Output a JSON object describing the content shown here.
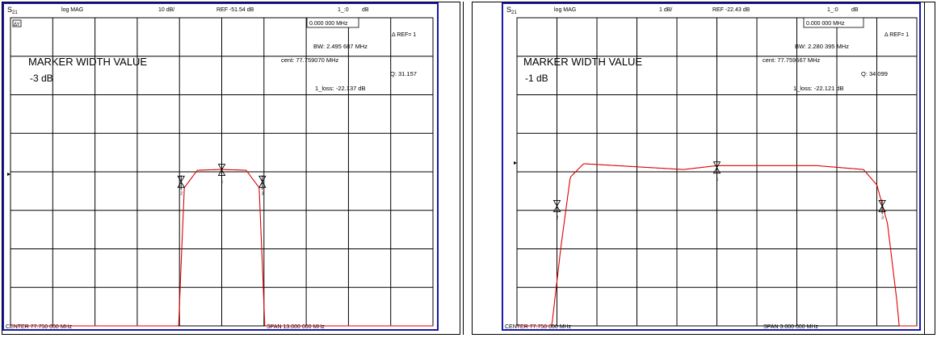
{
  "colors": {
    "trace": "#e00000",
    "grid": "#000000",
    "border": "#1a1aa6",
    "marker": "#000000"
  },
  "chart_data": [
    {
      "type": "line",
      "header": {
        "param_prefix": "S",
        "param_sub": "21",
        "format": "log MAG",
        "scale": "10 dB/",
        "ref": "REF -51.54 dB",
        "marker_header": "1_:0",
        "marker_header_unit": "dB"
      },
      "footer": {
        "center": "CENTER  77.750 000 MHz",
        "span": "SPAN  13.000 000 MHz"
      },
      "corner_badge": "ΔΥ",
      "readouts": {
        "marker_freq": "0.000 000 MHz",
        "delta_ref": "Δ REF= 1",
        "bw": "BW:   2.495 687 MHz",
        "cent": "cent: 77.759070 MHz",
        "q": "Q: 31.157",
        "loss": "1_loss: -22.137 dB"
      },
      "overlay": {
        "title": "MARKER WIDTH VALUE",
        "value": "-3 dB"
      },
      "axes": {
        "x_center_mhz": 77.75,
        "x_span_mhz": 13.0,
        "y_ref_db": -51.54,
        "y_per_div_db": 10,
        "grid_divisions": [
          10,
          8
        ]
      },
      "series": [
        {
          "x_mhz": [
            71.25,
            73.5,
            76.3,
            76.5,
            76.6,
            77.0,
            77.75,
            78.5,
            78.9,
            79.0,
            79.2,
            82.0,
            84.25
          ],
          "y_db": [
            -125.0,
            -118.0,
            -117.0,
            -75.0,
            -55.0,
            -50.5,
            -50.3,
            -50.5,
            -55.0,
            -75.0,
            -117.0,
            -117.0,
            -118.0
          ]
        }
      ],
      "markers": [
        {
          "label": "1",
          "x_mhz": 77.75,
          "y_db": -50.4
        },
        {
          "label": "2",
          "x_mhz": 76.5,
          "y_db": -53.5
        },
        {
          "label": "3",
          "x_mhz": 79.0,
          "y_db": -53.5
        }
      ]
    },
    {
      "type": "line",
      "header": {
        "param_prefix": "S",
        "param_sub": "21",
        "format": "log MAG",
        "scale": "1 dB/",
        "ref": "REF -22.43 dB",
        "marker_header": "1_:0",
        "marker_header_unit": "dB"
      },
      "footer": {
        "center": "CENTER  77.750 000 MHz",
        "span": "SPAN  3.000 000 MHz"
      },
      "readouts": {
        "marker_freq": "0.000 000 MHz",
        "delta_ref": "Δ REF= 1",
        "bw": "BW:   2.280 395 MHz",
        "cent": "cent: 77.759667 MHz",
        "q": "Q: 34.099",
        "loss": "1_loss: -22.121 dB"
      },
      "overlay": {
        "title": "MARKER WIDTH VALUE",
        "value": "-1 dB"
      },
      "axes": {
        "x_center_mhz": 77.75,
        "x_span_mhz": 3.0,
        "y_ref_db": -22.43,
        "y_per_div_db": 1,
        "grid_divisions": [
          10,
          8
        ]
      },
      "series": [
        {
          "x_mhz": [
            76.25,
            76.4,
            76.5,
            76.58,
            76.65,
            76.75,
            77.0,
            77.5,
            77.75,
            78.0,
            78.5,
            78.85,
            78.95,
            79.03,
            79.1,
            79.18,
            79.25
          ],
          "y_db": [
            -30.4,
            -30.4,
            -27.0,
            -24.6,
            -22.8,
            -22.45,
            -22.5,
            -22.6,
            -22.5,
            -22.5,
            -22.5,
            -22.6,
            -23.0,
            -24.0,
            -26.0,
            -29.0,
            -30.4
          ]
        }
      ],
      "markers": [
        {
          "label": "1",
          "x_mhz": 77.75,
          "y_db": -22.55
        },
        {
          "label": "2",
          "x_mhz": 76.55,
          "y_db": -23.55
        },
        {
          "label": "3",
          "x_mhz": 78.99,
          "y_db": -23.55
        }
      ]
    }
  ]
}
